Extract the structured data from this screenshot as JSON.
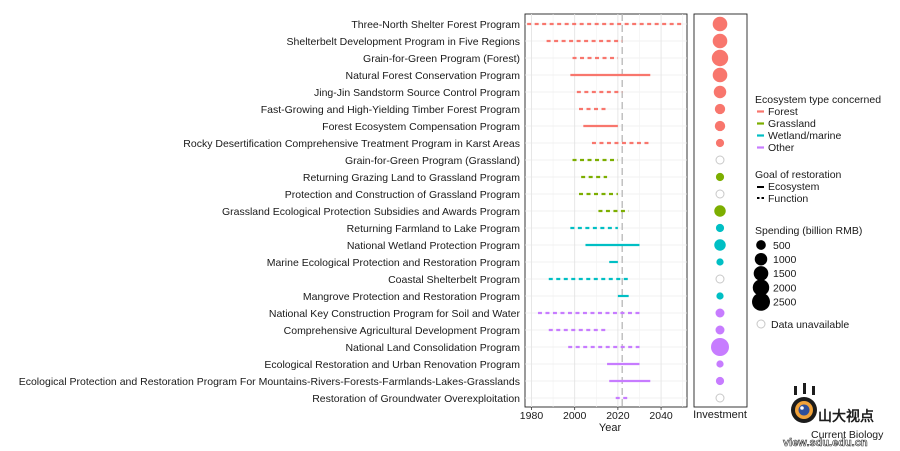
{
  "chart_data": {
    "type": "timeline",
    "xlabel": "Year",
    "xlim": [
      1977,
      2052
    ],
    "xticks": [
      1980,
      2000,
      2020,
      2040
    ],
    "reference_year": 2022,
    "investment_label": "Investment",
    "programs": [
      {
        "name": "Three-North Shelter Forest Program",
        "type": "Forest",
        "goal": "Function",
        "start": 1978,
        "end": 2050,
        "investment": 1500
      },
      {
        "name": "Shelterbelt Development Program in Five Regions",
        "type": "Forest",
        "goal": "Function",
        "start": 1987,
        "end": 2022,
        "investment": 1500
      },
      {
        "name": "Grain-for-Green Program (Forest)",
        "type": "Forest",
        "goal": "Function",
        "start": 1999,
        "end": 2020,
        "investment": 2000
      },
      {
        "name": "Natural Forest Conservation Program",
        "type": "Forest",
        "goal": "Ecosystem",
        "start": 1998,
        "end": 2035,
        "investment": 1500
      },
      {
        "name": "Jing-Jin Sandstorm Source Control Program",
        "type": "Forest",
        "goal": "Function",
        "start": 2001,
        "end": 2022,
        "investment": 1000
      },
      {
        "name": "Fast-Growing and High-Yielding Timber Forest Program",
        "type": "Forest",
        "goal": "Function",
        "start": 2002,
        "end": 2015,
        "investment": 600
      },
      {
        "name": "Forest Ecosystem Compensation Program",
        "type": "Forest",
        "goal": "Ecosystem",
        "start": 2004,
        "end": 2020,
        "investment": 600
      },
      {
        "name": "Rocky Desertification Comprehensive Treatment Program in Karst Areas",
        "type": "Forest",
        "goal": "Function",
        "start": 2008,
        "end": 2035,
        "investment": 300
      },
      {
        "name": "Grain-for-Green Program (Grassland)",
        "type": "Grassland",
        "goal": "Function",
        "start": 1999,
        "end": 2020,
        "investment": null
      },
      {
        "name": "Returning Grazing Land to Grassland Program",
        "type": "Grassland",
        "goal": "Function",
        "start": 2003,
        "end": 2015,
        "investment": 300
      },
      {
        "name": "Protection and Construction of Grassland Program",
        "type": "Grassland",
        "goal": "Function",
        "start": 2002,
        "end": 2020,
        "investment": null
      },
      {
        "name": "Grassland Ecological Protection Subsidies and Awards Program",
        "type": "Grassland",
        "goal": "Function",
        "start": 2011,
        "end": 2025,
        "investment": 800
      },
      {
        "name": "Returning Farmland to Lake Program",
        "type": "Wetland/marine",
        "goal": "Function",
        "start": 1998,
        "end": 2020,
        "investment": 300
      },
      {
        "name": "National Wetland Protection Program",
        "type": "Wetland/marine",
        "goal": "Ecosystem",
        "start": 2005,
        "end": 2030,
        "investment": 800
      },
      {
        "name": "Marine Ecological Protection and Restoration Program",
        "type": "Wetland/marine",
        "goal": "Ecosystem",
        "start": 2016,
        "end": 2020,
        "investment": 200
      },
      {
        "name": "Coastal Shelterbelt Program",
        "type": "Wetland/marine",
        "goal": "Function",
        "start": 1988,
        "end": 2025,
        "investment": null
      },
      {
        "name": "Mangrove Protection and Restoration Program",
        "type": "Wetland/marine",
        "goal": "Ecosystem",
        "start": 2020,
        "end": 2025,
        "investment": 200
      },
      {
        "name": "National Key Construction Program for Soil and Water",
        "type": "Other",
        "goal": "Function",
        "start": 1983,
        "end": 2030,
        "investment": 400
      },
      {
        "name": "Comprehensive Agricultural Development Program",
        "type": "Other",
        "goal": "Function",
        "start": 1988,
        "end": 2015,
        "investment": 400
      },
      {
        "name": "National Land Consolidation Program",
        "type": "Other",
        "goal": "Function",
        "start": 1997,
        "end": 2030,
        "investment": 2500
      },
      {
        "name": "Ecological Restoration and Urban Renovation Program",
        "type": "Other",
        "goal": "Ecosystem",
        "start": 2015,
        "end": 2030,
        "investment": 200
      },
      {
        "name": "Ecological Protection and Restoration Program For Mountains-Rivers-Forests-Farmlands-Lakes-Grasslands",
        "type": "Other",
        "goal": "Ecosystem",
        "start": 2016,
        "end": 2035,
        "investment": 300
      },
      {
        "name": "Restoration of Groundwater Overexploitation",
        "type": "Other",
        "goal": "Function",
        "start": 2019,
        "end": 2025,
        "investment": null
      }
    ],
    "legend": {
      "ecosystem_title": "Ecosystem type concerned",
      "ecosystem_types": [
        {
          "name": "Forest",
          "color": "#F8766D"
        },
        {
          "name": "Grassland",
          "color": "#7CAE00"
        },
        {
          "name": "Wetland/marine",
          "color": "#00BFC4"
        },
        {
          "name": "Other",
          "color": "#C77CFF"
        }
      ],
      "goal_title": "Goal of restoration",
      "goals": [
        "Ecosystem",
        "Function"
      ],
      "spending_title": "Spending (billion RMB)",
      "spending_values": [
        500,
        1000,
        1500,
        2000,
        2500
      ],
      "unavailable_label": "Data unavailable"
    }
  },
  "watermark": {
    "brand_cn": "山大视点",
    "source": "Current Biology",
    "url": "view.sdu.edu.cn"
  }
}
